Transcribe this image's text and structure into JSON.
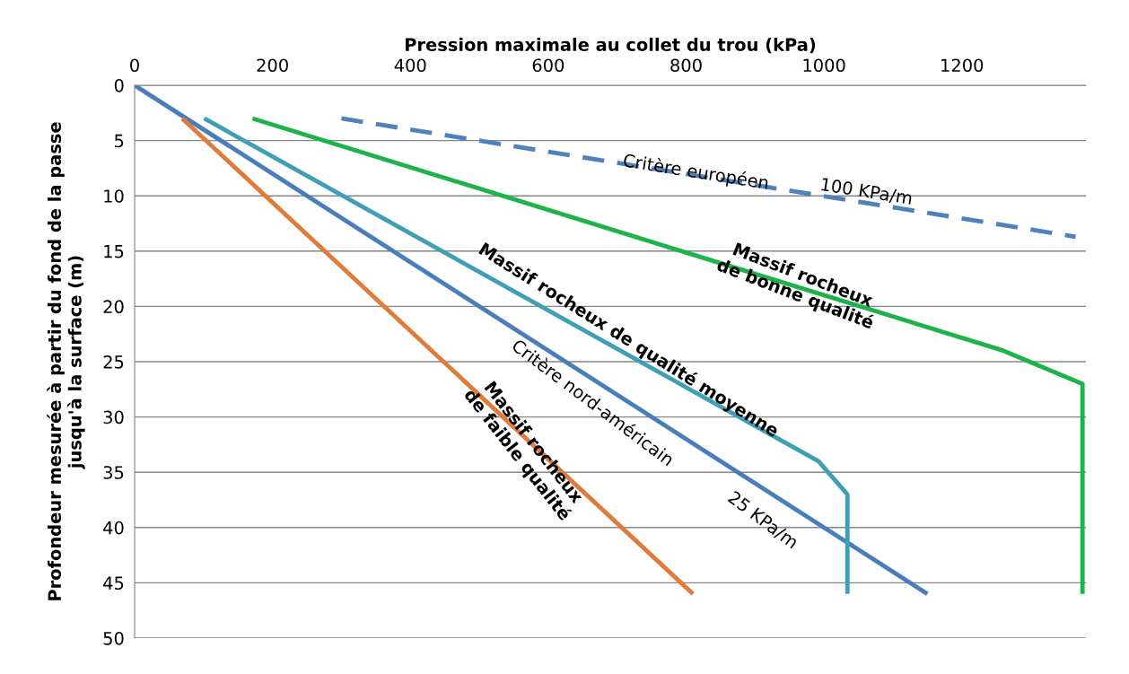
{
  "chart_data": {
    "type": "line",
    "xlabel": "Pression maximale au collet du trou (kPa)",
    "ylabel": "Profondeur mesurée à partir du fond de la passe\njusqu'à la surface (m)",
    "xlim": [
      0,
      1380
    ],
    "xticks": [
      0,
      200,
      400,
      600,
      800,
      1000,
      1200
    ],
    "ylim": [
      50,
      0
    ],
    "yticks": [
      0,
      5,
      10,
      15,
      20,
      25,
      30,
      35,
      40,
      45,
      50
    ],
    "grid": "y",
    "marker": "none",
    "series": [
      {
        "color": "#4f81bd",
        "line_style": "dashed",
        "x": [
          300,
          1365
        ],
        "values": [
          3,
          13.7
        ]
      },
      {
        "color": "#4a7ebb",
        "line_style": "solid",
        "x": [
          0,
          1150
        ],
        "values": [
          0,
          46
        ]
      },
      {
        "color": "#e07b39",
        "line_style": "solid",
        "x": [
          69,
          810
        ],
        "values": [
          3,
          46
        ]
      },
      {
        "color": "#3f9fb5",
        "line_style": "solid",
        "x": [
          101,
          992,
          1034,
          1034
        ],
        "values": [
          3,
          34,
          37,
          46
        ]
      },
      {
        "color": "#1db24a",
        "line_style": "solid",
        "x": [
          171,
          1260,
          1375,
          1375
        ],
        "values": [
          3,
          24,
          27,
          46
        ]
      }
    ],
    "annotations": [
      "Critère européen",
      "100 KPa/m",
      "Massif rocheux de qualité moyenne",
      "Critère nord-américain",
      "25 KPa/m",
      "Massif rocheux\nde bonne qualité",
      "Massif rocheux\nde faible qualité"
    ]
  }
}
